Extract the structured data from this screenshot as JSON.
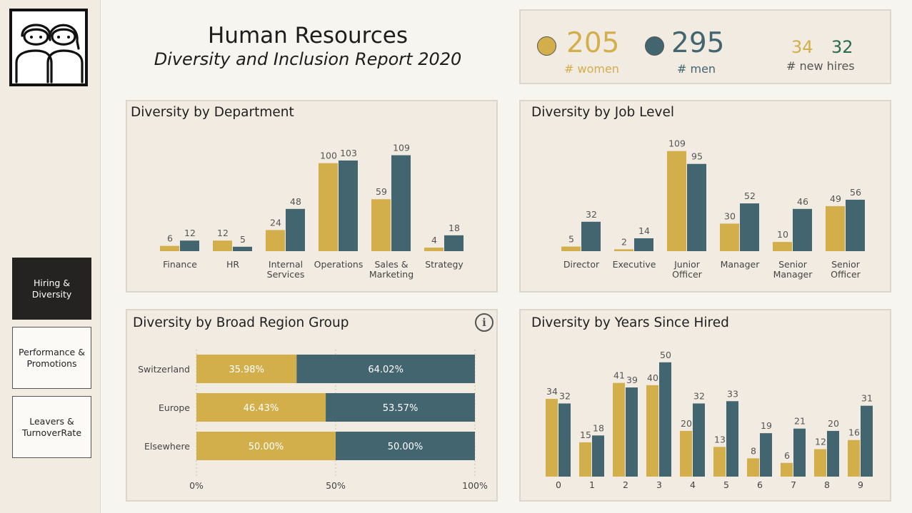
{
  "colors": {
    "women": "#d3af4b",
    "men": "#436570",
    "new_hires_men": "#2a6b52"
  },
  "sidebar": {
    "logo_icon": "people-icon",
    "nav": [
      {
        "label": "Hiring & Diversity",
        "active": true
      },
      {
        "label": "Performance & Promotions",
        "active": false
      },
      {
        "label": "Leavers & TurnoverRate",
        "active": false
      }
    ]
  },
  "header": {
    "title": "Human Resources",
    "subtitle": "Diversity and Inclusion Report 2020"
  },
  "kpi": {
    "women": {
      "value": "205",
      "label": "# women"
    },
    "men": {
      "value": "295",
      "label": "# men"
    },
    "new_hires": {
      "women": "34",
      "men": "32",
      "label": "# new hires"
    }
  },
  "panels": {
    "department": "Diversity by Department",
    "job_level": "Diversity by Job Level",
    "region": "Diversity by Broad Region Group",
    "years": "Diversity by Years Since Hired"
  },
  "chart_data": [
    {
      "id": "department",
      "type": "bar",
      "title": "Diversity by Department",
      "categories": [
        "Finance",
        "HR",
        "Internal Services",
        "Operations",
        "Sales & Marketing",
        "Strategy"
      ],
      "category_lines": [
        [
          "Finance"
        ],
        [
          "HR"
        ],
        [
          "Internal",
          "Services"
        ],
        [
          "Operations"
        ],
        [
          "Sales &",
          "Marketing"
        ],
        [
          "Strategy"
        ]
      ],
      "series": [
        {
          "key": "women",
          "values": [
            6,
            12,
            24,
            100,
            59,
            4
          ]
        },
        {
          "key": "men",
          "values": [
            12,
            5,
            48,
            103,
            109,
            18
          ]
        }
      ],
      "ylim": [
        0,
        120
      ]
    },
    {
      "id": "job_level",
      "type": "bar",
      "title": "Diversity by Job Level",
      "categories": [
        "Director",
        "Executive",
        "Junior Officer",
        "Manager",
        "Senior Manager",
        "Senior Officer"
      ],
      "category_lines": [
        [
          "Director"
        ],
        [
          "Executive"
        ],
        [
          "Junior",
          "Officer"
        ],
        [
          "Manager"
        ],
        [
          "Senior",
          "Manager"
        ],
        [
          "Senior",
          "Officer"
        ]
      ],
      "series": [
        {
          "key": "women",
          "values": [
            5,
            2,
            109,
            30,
            10,
            49
          ]
        },
        {
          "key": "men",
          "values": [
            32,
            14,
            95,
            52,
            46,
            56
          ]
        }
      ],
      "ylim": [
        0,
        115
      ]
    },
    {
      "id": "region",
      "type": "bar",
      "orientation": "horizontal-stacked-100",
      "title": "Diversity by Broad Region Group",
      "categories": [
        "Switzerland",
        "Europe",
        "Elsewhere"
      ],
      "series": [
        {
          "key": "women",
          "values": [
            35.98,
            46.43,
            50.0
          ],
          "labels": [
            "35.98%",
            "46.43%",
            "50.00%"
          ]
        },
        {
          "key": "men",
          "values": [
            64.02,
            53.57,
            50.0
          ],
          "labels": [
            "64.02%",
            "53.57%",
            "50.00%"
          ]
        }
      ],
      "xticks": [
        "0%",
        "50%",
        "100%"
      ],
      "xlim": [
        0,
        100
      ]
    },
    {
      "id": "years",
      "type": "bar",
      "title": "Diversity by Years Since Hired",
      "categories": [
        "0",
        "1",
        "2",
        "3",
        "4",
        "5",
        "6",
        "7",
        "8",
        "9"
      ],
      "series": [
        {
          "key": "women",
          "values": [
            34,
            15,
            41,
            40,
            20,
            13,
            8,
            6,
            12,
            16
          ]
        },
        {
          "key": "men",
          "values": [
            32,
            18,
            39,
            50,
            32,
            33,
            19,
            21,
            20,
            31
          ]
        }
      ],
      "ylim": [
        0,
        54
      ]
    }
  ]
}
